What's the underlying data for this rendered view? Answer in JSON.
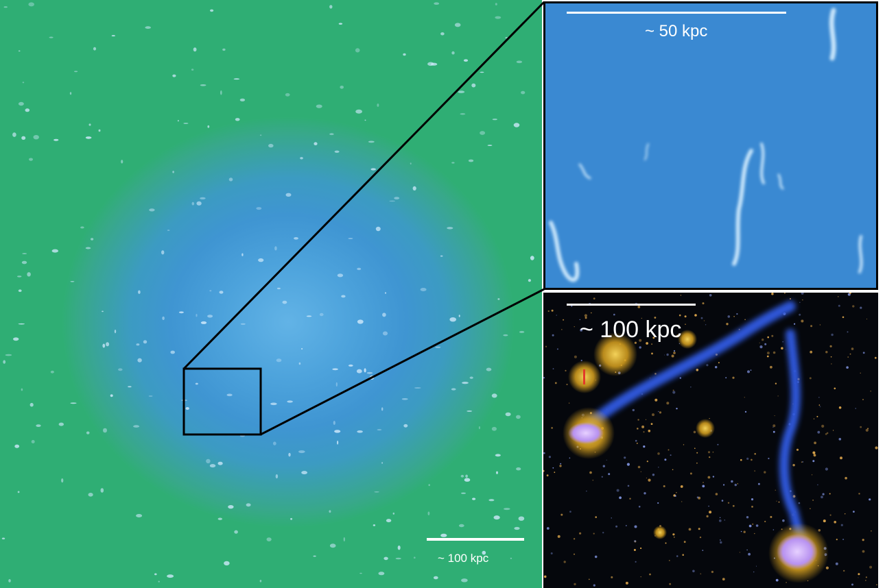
{
  "figure": {
    "main_panel": {
      "scale_bar_label": "~ 100 kpc"
    },
    "zoom_panel": {
      "scale_bar_label": "~ 50 kpc"
    },
    "photo_panel": {
      "scale_bar_label": "~ 100 kpc"
    }
  },
  "colors": {
    "halo_core": "#62b3e6",
    "halo_outer": "#2fae74",
    "zoom_background": "#3a89d2",
    "photo_background": "#05070c",
    "gas_streams": "#2f57d8",
    "galaxy_glow": "#d9a21f",
    "galaxy_core": "#c9a0f2"
  }
}
